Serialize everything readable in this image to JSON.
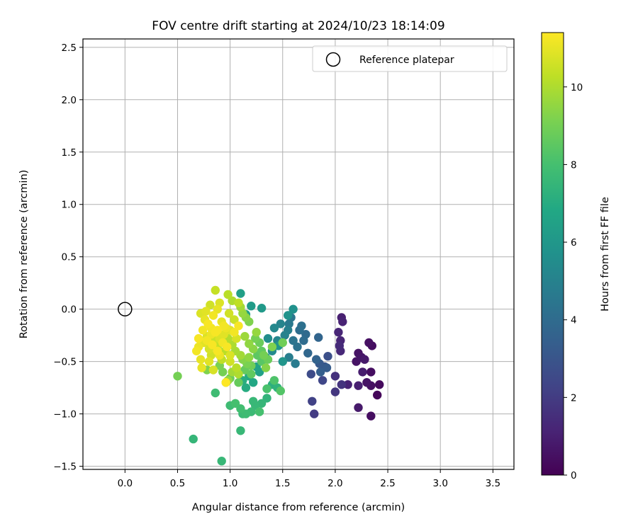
{
  "chart_data": {
    "type": "scatter",
    "title": "FOV centre drift starting at 2024/10/23 18:14:09",
    "xlabel": "Angular distance from reference (arcmin)",
    "ylabel": "Rotation from reference (arcmin)",
    "xlim": [
      -0.4,
      3.7
    ],
    "ylim": [
      -1.53,
      2.58
    ],
    "xticks": [
      0.0,
      0.5,
      1.0,
      1.5,
      2.0,
      2.5,
      3.0,
      3.5
    ],
    "xtick_labels": [
      "0.0",
      "0.5",
      "1.0",
      "1.5",
      "2.0",
      "2.5",
      "3.0",
      "3.5"
    ],
    "yticks": [
      -1.5,
      -1.0,
      -0.5,
      0.0,
      0.5,
      1.0,
      1.5,
      2.0,
      2.5
    ],
    "ytick_labels": [
      "−1.5",
      "−1.0",
      "−0.5",
      "0.0",
      "0.5",
      "1.0",
      "1.5",
      "2.0",
      "2.5"
    ],
    "grid": true,
    "legend": {
      "placement": "top-right",
      "entries": [
        "Reference platepar"
      ]
    },
    "reference_point": {
      "x": 0.0,
      "y": 0.0
    },
    "colorbar": {
      "label": "Hours from first FF file",
      "colormap": "viridis",
      "range": [
        0,
        11.4
      ],
      "ticks": [
        0,
        2,
        4,
        6,
        8,
        10
      ],
      "tick_labels": [
        "0",
        "2",
        "4",
        "6",
        "8",
        "10"
      ]
    },
    "points": [
      [
        2.35,
        -0.35,
        0.4
      ],
      [
        2.32,
        -0.32,
        0.5
      ],
      [
        2.22,
        -0.42,
        0.6
      ],
      [
        2.25,
        -0.46,
        0.7
      ],
      [
        2.2,
        -0.5,
        0.6
      ],
      [
        2.28,
        -0.48,
        0.8
      ],
      [
        2.34,
        -0.6,
        0.4
      ],
      [
        2.26,
        -0.6,
        0.9
      ],
      [
        2.42,
        -0.72,
        0.3
      ],
      [
        2.4,
        -0.82,
        0.2
      ],
      [
        2.34,
        -0.73,
        0.5
      ],
      [
        2.3,
        -0.7,
        0.6
      ],
      [
        2.22,
        -0.73,
        1.0
      ],
      [
        2.12,
        -0.72,
        1.1
      ],
      [
        2.34,
        -1.02,
        0.4
      ],
      [
        2.22,
        -0.94,
        0.8
      ],
      [
        2.06,
        -0.08,
        1.0
      ],
      [
        2.07,
        -0.12,
        1.1
      ],
      [
        2.03,
        -0.22,
        1.2
      ],
      [
        2.05,
        -0.3,
        1.2
      ],
      [
        2.05,
        -0.4,
        1.3
      ],
      [
        2.04,
        -0.35,
        1.4
      ],
      [
        2.0,
        -0.64,
        1.6
      ],
      [
        2.06,
        -0.72,
        1.7
      ],
      [
        2.0,
        -0.79,
        1.8
      ],
      [
        1.8,
        -1.0,
        2.0
      ],
      [
        1.78,
        -0.88,
        2.2
      ],
      [
        1.88,
        -0.68,
        2.4
      ],
      [
        1.77,
        -0.62,
        2.6
      ],
      [
        1.9,
        -0.55,
        3.0
      ],
      [
        1.93,
        -0.45,
        2.8
      ],
      [
        1.85,
        -0.52,
        3.2
      ],
      [
        1.92,
        -0.56,
        3.3
      ],
      [
        1.86,
        -0.6,
        3.4
      ],
      [
        1.82,
        -0.48,
        3.6
      ],
      [
        1.84,
        -0.27,
        3.7
      ],
      [
        1.74,
        -0.42,
        3.8
      ],
      [
        1.72,
        -0.24,
        3.9
      ],
      [
        1.7,
        -0.3,
        4.0
      ],
      [
        1.66,
        -0.2,
        4.1
      ],
      [
        1.68,
        -0.16,
        4.2
      ],
      [
        1.64,
        -0.36,
        4.3
      ],
      [
        1.6,
        -0.3,
        4.4
      ],
      [
        1.58,
        -0.08,
        4.5
      ],
      [
        1.56,
        -0.14,
        4.6
      ],
      [
        1.62,
        -0.52,
        4.7
      ],
      [
        1.56,
        -0.46,
        4.8
      ],
      [
        1.55,
        -0.2,
        4.9
      ],
      [
        1.52,
        -0.25,
        5.0
      ],
      [
        1.48,
        -0.14,
        5.1
      ],
      [
        1.45,
        -0.3,
        5.2
      ],
      [
        1.42,
        -0.18,
        5.3
      ],
      [
        1.4,
        -0.4,
        5.4
      ],
      [
        1.36,
        -0.28,
        5.5
      ],
      [
        1.34,
        -0.46,
        5.6
      ],
      [
        1.6,
        0.0,
        5.7
      ],
      [
        1.55,
        -0.06,
        5.8
      ],
      [
        1.5,
        -0.5,
        5.9
      ],
      [
        1.46,
        -0.35,
        6.0
      ],
      [
        1.3,
        0.01,
        6.1
      ],
      [
        1.2,
        0.03,
        6.2
      ],
      [
        1.15,
        -0.05,
        6.3
      ],
      [
        1.1,
        0.15,
        6.4
      ],
      [
        1.28,
        -0.6,
        6.5
      ],
      [
        1.25,
        -0.55,
        6.6
      ],
      [
        1.22,
        -0.7,
        6.8
      ],
      [
        1.18,
        -0.64,
        6.9
      ],
      [
        1.15,
        -0.75,
        7.0
      ],
      [
        1.12,
        -0.68,
        7.1
      ],
      [
        1.4,
        -0.72,
        7.2
      ],
      [
        1.45,
        -0.75,
        7.3
      ],
      [
        1.35,
        -0.85,
        7.4
      ],
      [
        1.3,
        -0.9,
        7.5
      ],
      [
        1.24,
        -0.92,
        7.6
      ],
      [
        1.2,
        -0.98,
        7.7
      ],
      [
        1.15,
        -1.0,
        7.8
      ],
      [
        1.1,
        -0.95,
        7.9
      ],
      [
        1.05,
        -0.9,
        8.0
      ],
      [
        1.0,
        -0.92,
        7.8
      ],
      [
        1.12,
        -1.0,
        7.7
      ],
      [
        1.22,
        -0.88,
        7.6
      ],
      [
        0.92,
        -1.45,
        7.6
      ],
      [
        1.1,
        -1.16,
        7.6
      ],
      [
        0.65,
        -1.24,
        7.5
      ],
      [
        0.86,
        -0.8,
        7.8
      ],
      [
        1.28,
        -0.98,
        8.0
      ],
      [
        1.35,
        -0.76,
        8.1
      ],
      [
        1.42,
        -0.68,
        8.2
      ],
      [
        1.48,
        -0.78,
        8.3
      ],
      [
        1.3,
        -0.5,
        8.4
      ],
      [
        1.26,
        -0.44,
        8.5
      ],
      [
        1.2,
        -0.62,
        8.6
      ],
      [
        1.08,
        -0.7,
        8.7
      ],
      [
        1.0,
        -0.66,
        8.8
      ],
      [
        0.96,
        -0.7,
        8.9
      ],
      [
        0.93,
        -0.6,
        9.0
      ],
      [
        0.9,
        -0.54,
        9.1
      ],
      [
        0.78,
        -0.58,
        9.2
      ],
      [
        0.5,
        -0.64,
        9.0
      ],
      [
        1.5,
        -0.32,
        8.9
      ],
      [
        1.4,
        -0.36,
        9.2
      ],
      [
        1.34,
        -0.56,
        9.3
      ],
      [
        1.22,
        -0.38,
        9.4
      ],
      [
        1.18,
        -0.33,
        9.5
      ],
      [
        1.25,
        -0.22,
        9.6
      ],
      [
        1.14,
        -0.26,
        9.7
      ],
      [
        1.1,
        -0.44,
        9.8
      ],
      [
        1.05,
        -0.4,
        9.9
      ],
      [
        1.02,
        -0.34,
        10.0
      ],
      [
        0.98,
        -0.28,
        10.1
      ],
      [
        0.95,
        -0.4,
        10.2
      ],
      [
        0.92,
        -0.48,
        10.3
      ],
      [
        0.88,
        -0.36,
        10.4
      ],
      [
        0.85,
        -0.3,
        10.5
      ],
      [
        0.82,
        -0.44,
        10.6
      ],
      [
        0.8,
        -0.38,
        10.7
      ],
      [
        0.78,
        -0.26,
        10.8
      ],
      [
        0.75,
        -0.32,
        10.9
      ],
      [
        0.72,
        -0.48,
        11.0
      ],
      [
        0.7,
        -0.36,
        11.1
      ],
      [
        0.74,
        -0.2,
        11.2
      ],
      [
        0.79,
        -0.14,
        11.3
      ],
      [
        0.84,
        -0.06,
        11.2
      ],
      [
        0.88,
        0.0,
        11.0
      ],
      [
        0.9,
        0.06,
        10.8
      ],
      [
        0.86,
        0.18,
        10.4
      ],
      [
        0.98,
        0.14,
        10.2
      ],
      [
        1.02,
        0.08,
        10.0
      ],
      [
        1.1,
        0.02,
        9.8
      ],
      [
        1.12,
        -0.04,
        9.6
      ],
      [
        1.15,
        -0.08,
        9.4
      ],
      [
        1.18,
        -0.12,
        9.2
      ],
      [
        1.08,
        -0.16,
        11.3
      ],
      [
        1.04,
        -0.22,
        11.2
      ],
      [
        0.96,
        -0.18,
        11.1
      ],
      [
        0.92,
        -0.12,
        11.0
      ],
      [
        0.94,
        -0.24,
        10.9
      ],
      [
        0.9,
        -0.28,
        10.8
      ],
      [
        0.86,
        -0.22,
        11.3
      ],
      [
        0.82,
        -0.18,
        11.2
      ],
      [
        0.76,
        -0.1,
        11.0
      ],
      [
        0.72,
        -0.04,
        10.8
      ],
      [
        0.7,
        -0.28,
        11.3
      ],
      [
        0.68,
        -0.4,
        11.2
      ],
      [
        0.73,
        -0.56,
        11.0
      ],
      [
        0.8,
        -0.5,
        10.9
      ],
      [
        0.84,
        -0.58,
        10.7
      ],
      [
        0.9,
        -0.44,
        11.1
      ],
      [
        1.0,
        -0.5,
        10.6
      ],
      [
        1.06,
        -0.56,
        10.2
      ],
      [
        1.08,
        -0.62,
        10.0
      ],
      [
        1.02,
        -0.6,
        9.8
      ],
      [
        0.98,
        -0.68,
        9.6
      ],
      [
        0.96,
        -0.7,
        11.4
      ],
      [
        1.24,
        -0.28,
        9.0
      ],
      [
        1.28,
        -0.32,
        8.8
      ],
      [
        1.3,
        -0.4,
        8.6
      ],
      [
        1.32,
        -0.44,
        9.0
      ],
      [
        1.36,
        -0.48,
        8.8
      ],
      [
        1.12,
        -0.48,
        9.3
      ],
      [
        1.16,
        -0.52,
        9.1
      ],
      [
        1.2,
        -0.54,
        8.9
      ],
      [
        1.14,
        -0.58,
        8.7
      ],
      [
        1.18,
        -0.46,
        9.5
      ],
      [
        1.0,
        -0.44,
        10.8
      ],
      [
        0.97,
        -0.36,
        11.3
      ],
      [
        0.93,
        -0.32,
        11.2
      ],
      [
        0.88,
        -0.4,
        11.3
      ],
      [
        0.83,
        -0.34,
        11.3
      ],
      [
        0.78,
        -0.3,
        11.2
      ],
      [
        0.82,
        -0.24,
        11.1
      ],
      [
        0.88,
        -0.2,
        11.3
      ],
      [
        0.94,
        -0.16,
        11.2
      ],
      [
        1.0,
        -0.2,
        10.9
      ],
      [
        1.06,
        -0.28,
        10.7
      ],
      [
        1.04,
        -0.1,
        10.5
      ],
      [
        0.99,
        -0.04,
        10.6
      ],
      [
        1.08,
        0.06,
        10.3
      ],
      [
        0.81,
        0.04,
        10.6
      ],
      [
        0.77,
        -0.02,
        10.9
      ]
    ]
  }
}
